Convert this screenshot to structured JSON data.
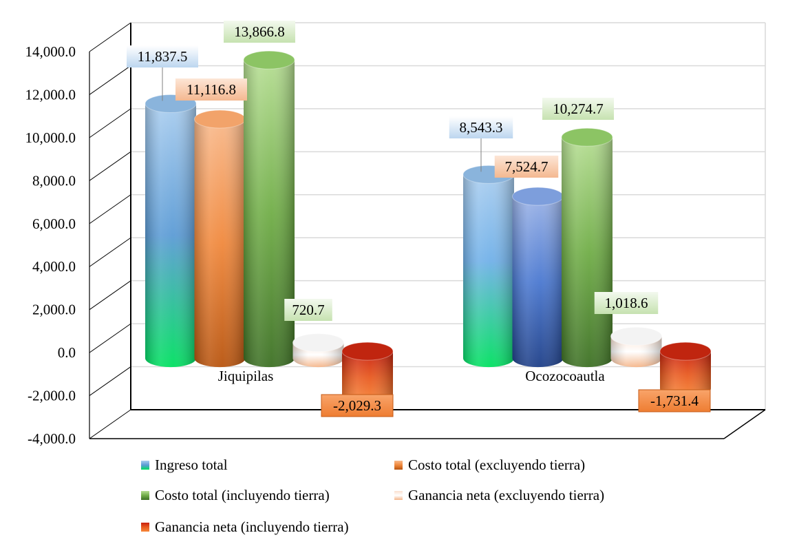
{
  "chart_data": {
    "type": "bar",
    "style": "3d-cylinder",
    "title": "",
    "xlabel": "",
    "ylabel": "",
    "ylim": [
      -4000,
      14000
    ],
    "ytick_step": 2000,
    "yticks": [
      "-4,000.0",
      "-2,000.0",
      "0.0",
      "2,000.0",
      "4,000.0",
      "6,000.0",
      "8,000.0",
      "10,000.0",
      "12,000.0",
      "14,000.0"
    ],
    "grid": true,
    "legend_position": "bottom",
    "categories": [
      "Jiquipilas",
      "Ocozocoautla"
    ],
    "series": [
      {
        "name": "Ingreso total",
        "values": [
          11837.5,
          8543.3
        ],
        "labels": [
          "11,837.5",
          "8,543.3"
        ],
        "color": "#5b9bd5"
      },
      {
        "name": "Costo total (excluyendo tierra)",
        "values": [
          11116.8,
          7524.7
        ],
        "labels": [
          "11,116.8",
          "7,524.7"
        ],
        "color": "#ed7d31"
      },
      {
        "name": "Costo total (incluyendo tierra)",
        "values": [
          13866.8,
          10274.7
        ],
        "labels": [
          "13,866.8",
          "10,274.7"
        ],
        "color": "#70ad47"
      },
      {
        "name": "Ganancia neta (excluyendo tierra)",
        "values": [
          720.7,
          1018.6
        ],
        "labels": [
          "720.7",
          "1,018.6"
        ],
        "color": "#f8cbad"
      },
      {
        "name": "Ganancia neta (incluyendo tierra)",
        "values": [
          -2029.3,
          -1731.4
        ],
        "labels": [
          "-2,029.3",
          "-1,731.4"
        ],
        "color": "#d83b01"
      }
    ]
  }
}
